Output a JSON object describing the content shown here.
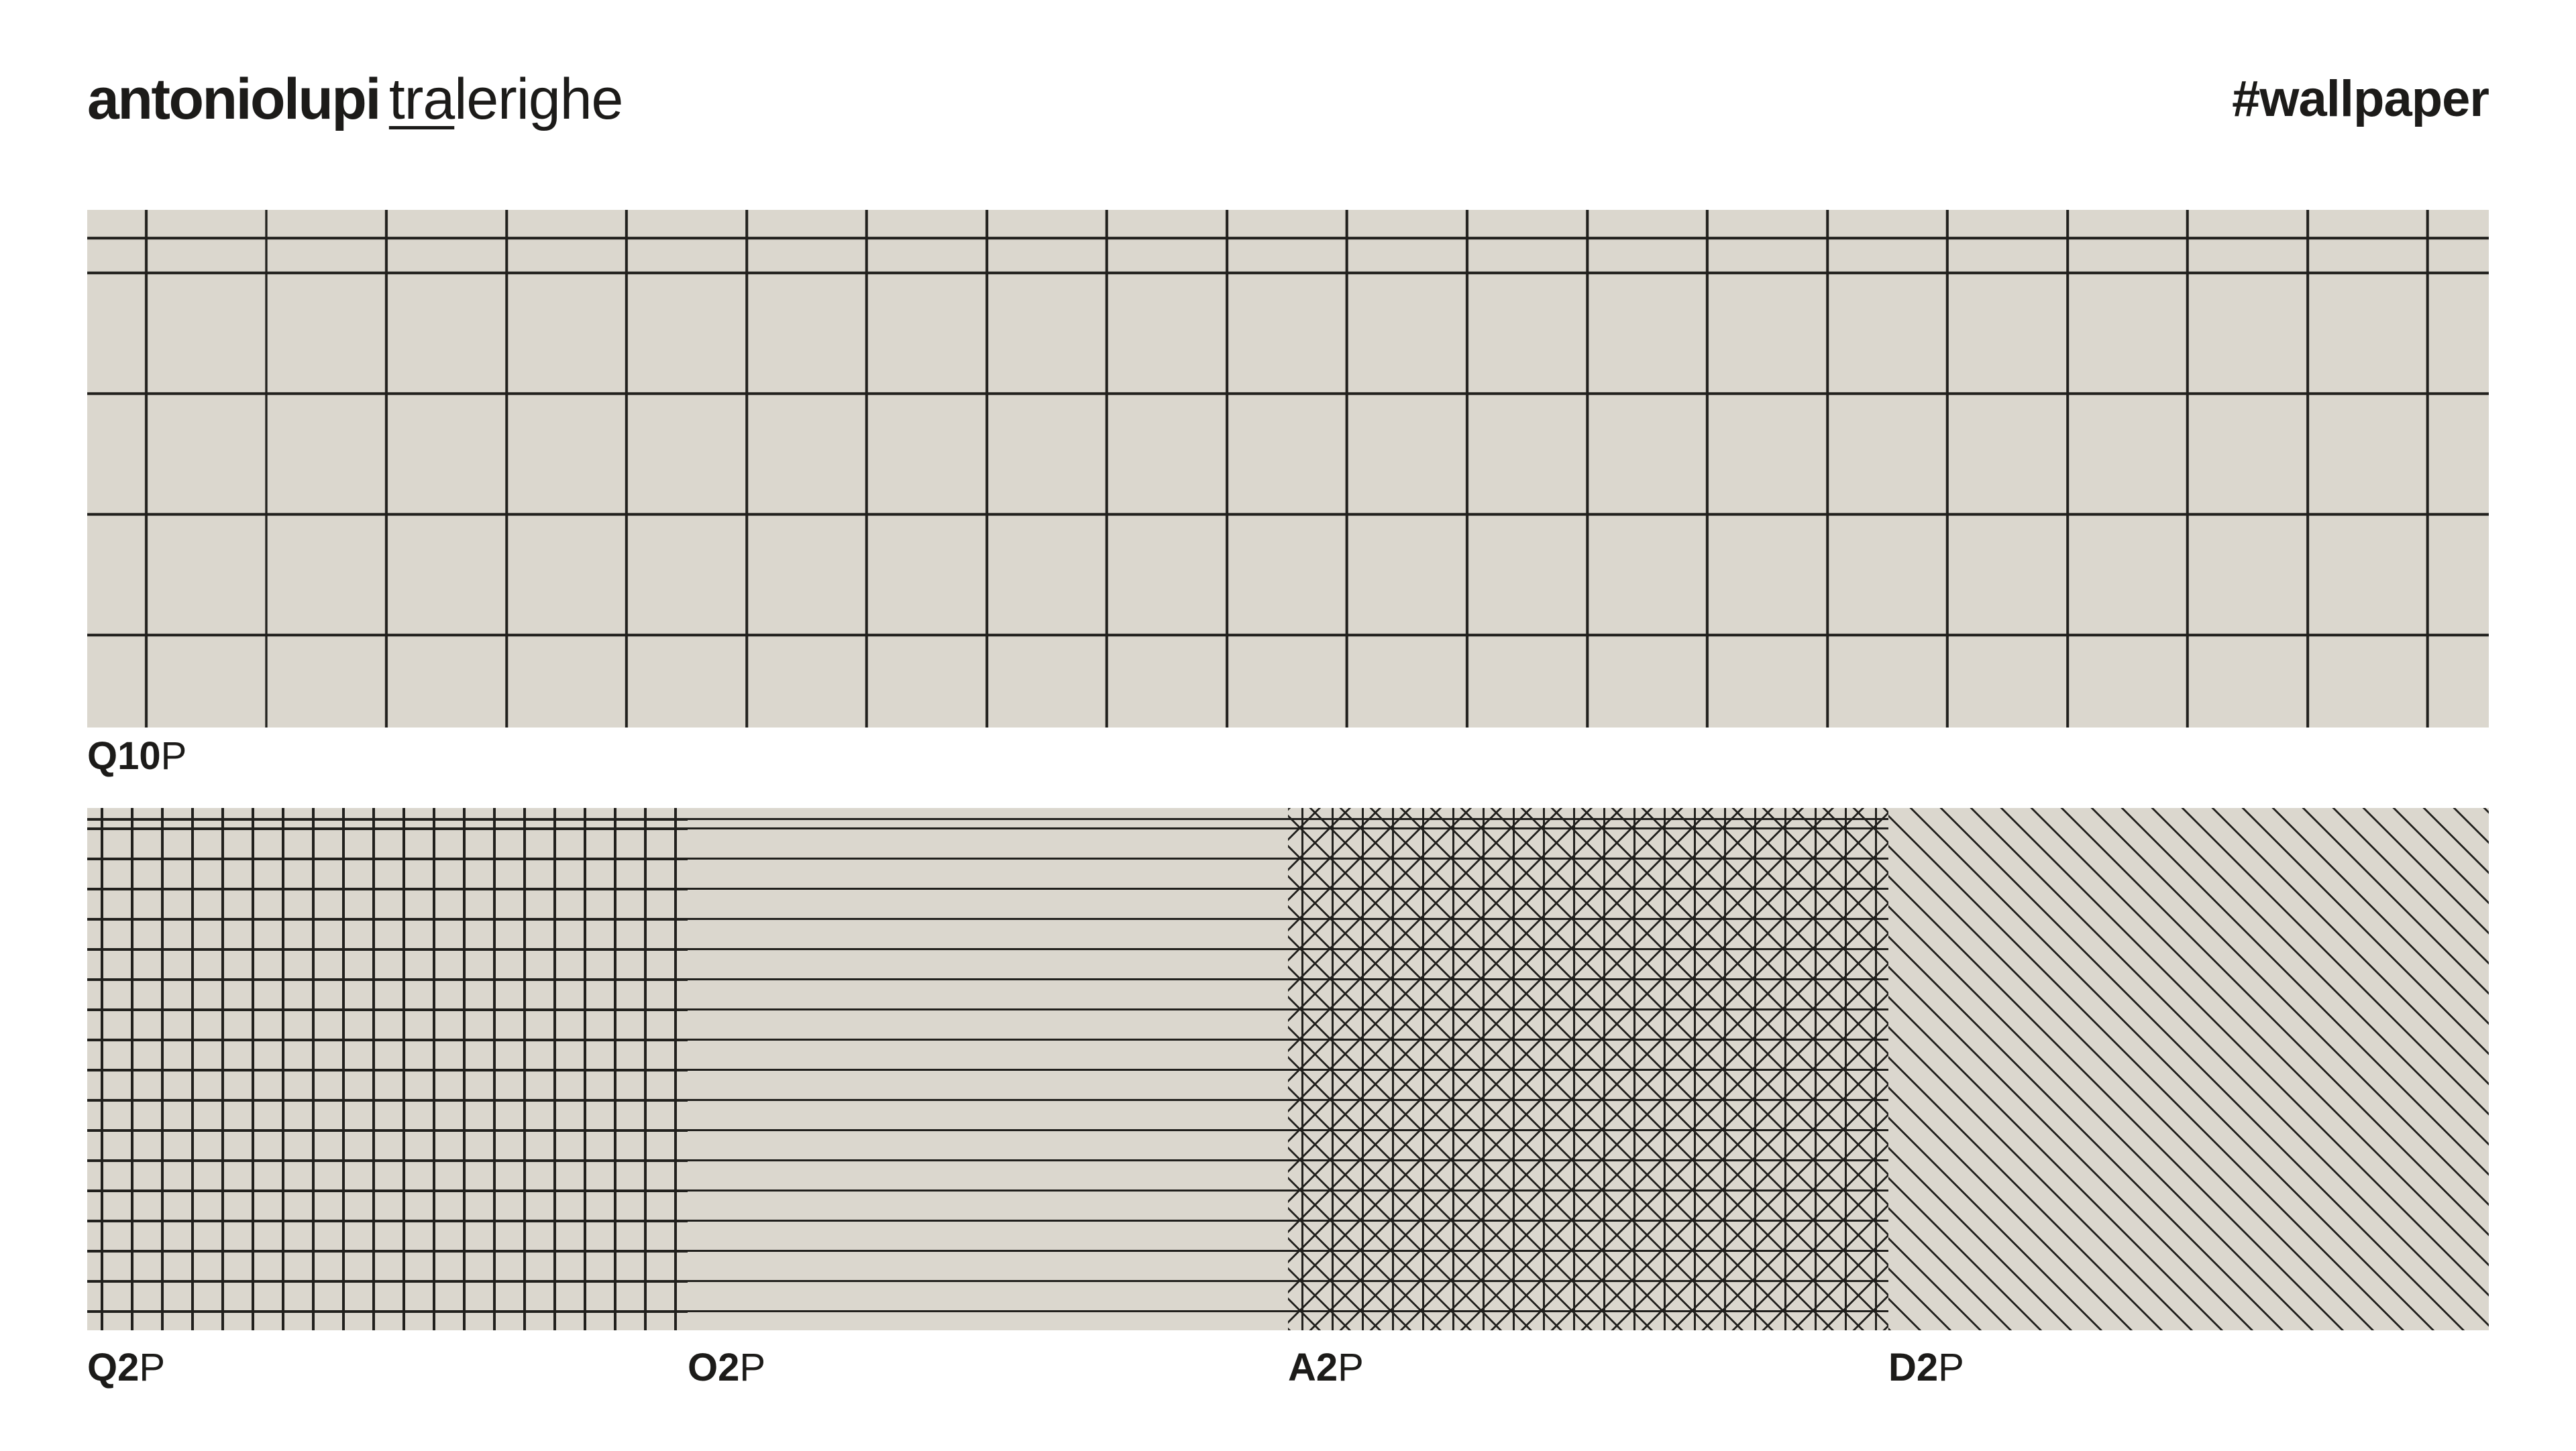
{
  "header": {
    "brand": "antoniolupi",
    "collection_underlined": "tra",
    "collection_rest": "lerighe",
    "hashtag": "#wallpaper"
  },
  "colors": {
    "page_background": "#ffffff",
    "swatch_background": "#dbd7ce",
    "pattern_line": "#21201d",
    "text": "#1c1b19"
  },
  "swatches": {
    "top": {
      "code_prefix": "Q10",
      "code_suffix": "P",
      "pattern": "large square grid"
    },
    "bottom": [
      {
        "code_prefix": "Q2",
        "code_suffix": "P",
        "pattern": "small square grid"
      },
      {
        "code_prefix": "O2",
        "code_suffix": "P",
        "pattern": "horizontal lines"
      },
      {
        "code_prefix": "A2",
        "code_suffix": "P",
        "pattern": "square grid with diagonal crosshatch"
      },
      {
        "code_prefix": "D2",
        "code_suffix": "P",
        "pattern": "diagonal lines"
      }
    ]
  }
}
